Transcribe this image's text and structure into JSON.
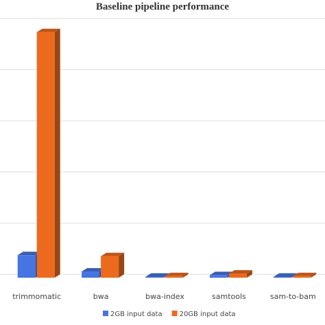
{
  "chart_data": {
    "type": "bar3d",
    "title": "Baseline pipeline performance",
    "categories": [
      "trimmomatic",
      "bwa",
      "bwa-index",
      "samtools",
      "sam-to-bam"
    ],
    "series": [
      {
        "name": "2GB input data",
        "color": "#4674e0",
        "values": [
          0.44,
          0.12,
          0.02,
          0.05,
          0.02
        ]
      },
      {
        "name": "20GB input data",
        "color": "#ec6a1e",
        "values": [
          4.8,
          0.42,
          0.03,
          0.08,
          0.03
        ]
      }
    ],
    "ylim": [
      0,
      5
    ],
    "gridlines": [
      0,
      1,
      2,
      3,
      4,
      5
    ],
    "grid": true,
    "legend": "bottom"
  }
}
